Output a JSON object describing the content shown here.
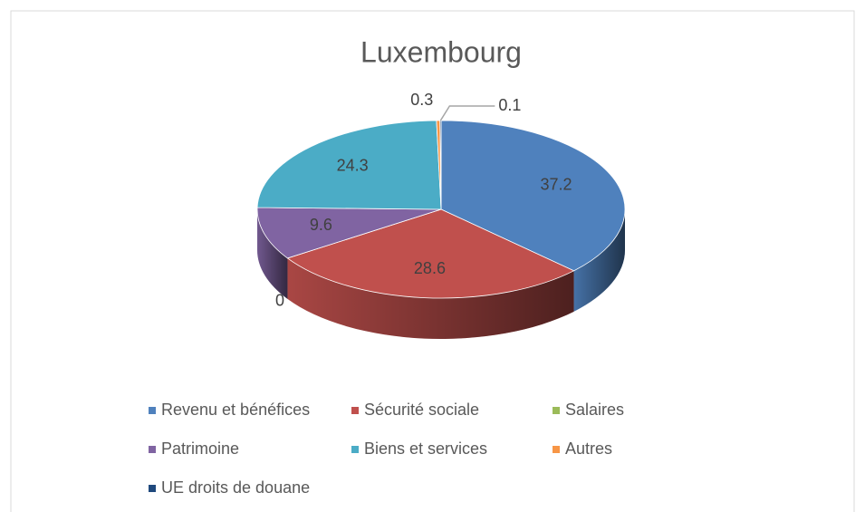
{
  "chart_data": {
    "type": "pie",
    "title": "Luxembourg",
    "categories": [
      "Revenu et bénéfices",
      "Sécurité sociale",
      "Salaires",
      "Patrimoine",
      "Biens et services",
      "Autres",
      "UE droits de douane"
    ],
    "values": [
      37.2,
      28.6,
      0,
      9.6,
      24.3,
      0.3,
      0.1
    ],
    "colors": [
      "#4f81bd",
      "#c0504d",
      "#9bbb59",
      "#8064a2",
      "#4bacc6",
      "#f79646",
      "#1f497d"
    ],
    "legend": "bottom"
  }
}
